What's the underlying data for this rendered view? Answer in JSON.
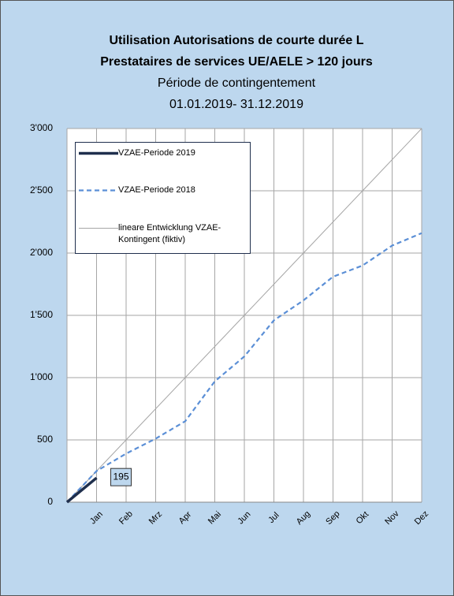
{
  "chart_data": {
    "type": "line",
    "title": [
      "Utilisation Autorisations de courte durée L",
      "Prestataires de services UE/AELE > 120 jours"
    ],
    "subtitle": [
      "Période de contingentement",
      "01.01.2019- 31.12.2019"
    ],
    "categories": [
      null,
      "Jan",
      "Feb",
      "Mrz",
      "Apr",
      "Mai",
      "Jun",
      "Jul",
      "Aug",
      "Sep",
      "Okt",
      "Nov",
      "Dez"
    ],
    "series": [
      {
        "name": "VZAE-Periode 2019",
        "color": "#1f2f4d",
        "width": 3.5,
        "dashed": false,
        "values": [
          0,
          195,
          null,
          null,
          null,
          null,
          null,
          null,
          null,
          null,
          null,
          null,
          null
        ],
        "data_label_index": 1
      },
      {
        "name": "VZAE-Periode 2018",
        "color": "#5b8fd6",
        "width": 2.2,
        "dashed": true,
        "values": [
          0,
          250,
          390,
          510,
          650,
          970,
          1170,
          1460,
          1620,
          1810,
          1900,
          2060,
          2160
        ]
      },
      {
        "name": "lineare Entwicklung VZAE-Kontingent (fiktiv)",
        "color": "#a6a6a6",
        "width": 1,
        "dashed": false,
        "values": [
          0,
          250,
          500,
          750,
          1000,
          1250,
          1500,
          1750,
          2000,
          2250,
          2500,
          2750,
          3000
        ]
      }
    ],
    "ylim": [
      0,
      3000
    ],
    "yticks": [
      0,
      500,
      {
        "value": 1000,
        "label": "1'000"
      },
      {
        "value": 1500,
        "label": "1'500"
      },
      {
        "value": 2000,
        "label": "2'000"
      },
      {
        "value": 2500,
        "label": "2'500"
      },
      {
        "value": 3000,
        "label": "3'000"
      }
    ],
    "grid": true
  }
}
